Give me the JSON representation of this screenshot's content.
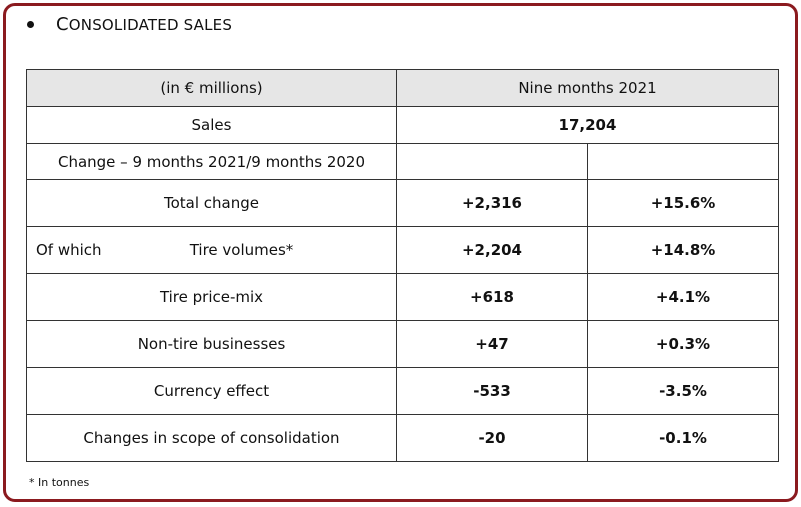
{
  "section": {
    "title_initial": "C",
    "title_rest": "ONSOLIDATED SALES",
    "title_initial2": "S",
    "title_rest2": "ALES"
  },
  "table": {
    "header_left": "(in € millions)",
    "header_right": "Nine months 2021",
    "sales_label": "Sales",
    "sales_value": "17,204",
    "change_label": "Change – 9 months 2021/9 months 2020",
    "of_which": "Of which",
    "rows": [
      {
        "label": "Total change",
        "value": "+2,316",
        "pct": "+15.6%"
      },
      {
        "label": "Tire volumes*",
        "value": "+2,204",
        "pct": "+14.8%"
      },
      {
        "label": "Tire price-mix",
        "value": "+618",
        "pct": "+4.1%"
      },
      {
        "label": "Non-tire businesses",
        "value": "+47",
        "pct": "+0.3%"
      },
      {
        "label": "Currency effect",
        "value": "-533",
        "pct": "-3.5%"
      },
      {
        "label": "Changes in scope of consolidation",
        "value": "-20",
        "pct": "-0.1%"
      }
    ]
  },
  "footnote": "* In tonnes"
}
